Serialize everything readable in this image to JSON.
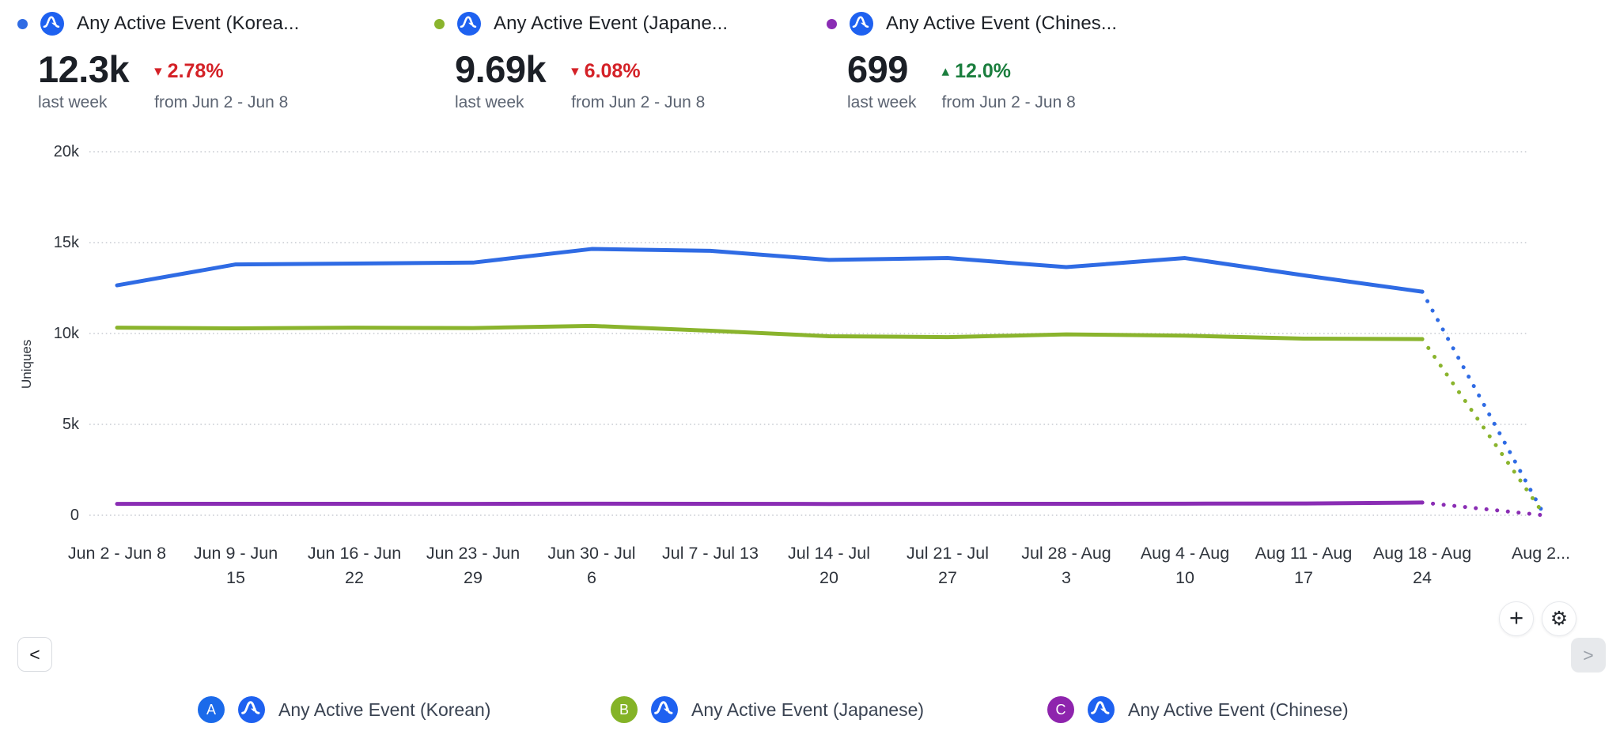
{
  "summary_cards": [
    {
      "title": "Any Active Event (Korea...",
      "value": "12.3k",
      "change_arrow": "▾",
      "change": "2.78%",
      "change_color": "#d42127",
      "period_label": "last week",
      "compare_label": "from Jun 2 - Jun 8",
      "dot_color": "#2f6be4"
    },
    {
      "title": "Any Active Event (Japane...",
      "value": "9.69k",
      "change_arrow": "▾",
      "change": "6.08%",
      "change_color": "#d42127",
      "period_label": "last week",
      "compare_label": "from Jun 2 - Jun 8",
      "dot_color": "#8ab42d"
    },
    {
      "title": "Any Active Event (Chines...",
      "value": "699",
      "change_arrow": "▴",
      "change": "12.0%",
      "change_color": "#1b7e3e",
      "period_label": "last week",
      "compare_label": "from Jun 2 - Jun 8",
      "dot_color": "#8a2db4"
    }
  ],
  "chart_data": {
    "type": "line",
    "title": "",
    "ylabel": "Uniques",
    "ylim": [
      0,
      20000
    ],
    "grid": "horizontal-dotted",
    "legend_position": "bottom",
    "yticks": [
      {
        "value": 0,
        "label": "0"
      },
      {
        "value": 5000,
        "label": "5k"
      },
      {
        "value": 10000,
        "label": "10k"
      },
      {
        "value": 15000,
        "label": "15k"
      },
      {
        "value": 20000,
        "label": "20k"
      }
    ],
    "categories": [
      "Jun 2 - Jun 8",
      "Jun 9 - Jun 15",
      "Jun 16 - Jun 22",
      "Jun 23 - Jun 29",
      "Jun 30 - Jul 6",
      "Jul 7 - Jul 13",
      "Jul 14 - Jul 20",
      "Jul 21 - Jul 27",
      "Jul 28 - Aug 3",
      "Aug 4 - Aug 10",
      "Aug 11 - Aug 17",
      "Aug 18 - Aug 24",
      "Aug 2..."
    ],
    "categories_wrapped": [
      [
        "Jun 2 - Jun 8"
      ],
      [
        "Jun 9 - Jun",
        "15"
      ],
      [
        "Jun 16 - Jun",
        "22"
      ],
      [
        "Jun 23 - Jun",
        "29"
      ],
      [
        "Jun 30 - Jul",
        "6"
      ],
      [
        "Jul 7 - Jul 13"
      ],
      [
        "Jul 14 - Jul",
        "20"
      ],
      [
        "Jul 21 - Jul",
        "27"
      ],
      [
        "Jul 28 - Aug",
        "3"
      ],
      [
        "Aug 4 - Aug",
        "10"
      ],
      [
        "Aug 11 - Aug",
        "17"
      ],
      [
        "Aug 18 - Aug",
        "24"
      ],
      [
        "Aug 2..."
      ]
    ],
    "last_segment_style": "dotted",
    "series": [
      {
        "name": "Any Active Event (Korean)",
        "badge": "A",
        "badge_color": "#1b6aea",
        "color": "#2f6be4",
        "values": [
          12650,
          13800,
          13850,
          13900,
          14650,
          14550,
          14050,
          14150,
          13650,
          14150,
          13200,
          12300,
          350
        ]
      },
      {
        "name": "Any Active Event (Japanese)",
        "badge": "B",
        "badge_color": "#84b327",
        "color": "#8ab42d",
        "values": [
          10320,
          10280,
          10320,
          10300,
          10420,
          10150,
          9850,
          9800,
          9950,
          9880,
          9720,
          9690,
          280
        ]
      },
      {
        "name": "Any Active Event (Chinese)",
        "badge": "C",
        "badge_color": "#8e24ad",
        "color": "#8a2db4",
        "values": [
          624,
          630,
          628,
          626,
          634,
          630,
          622,
          626,
          630,
          638,
          648,
          699,
          15
        ]
      }
    ]
  },
  "icons": {
    "amplitude_blue": "#1e61f0"
  },
  "controls": {
    "add_label": "+",
    "settings_glyph": "⚙",
    "prev_glyph": "<",
    "next_glyph": ">"
  }
}
